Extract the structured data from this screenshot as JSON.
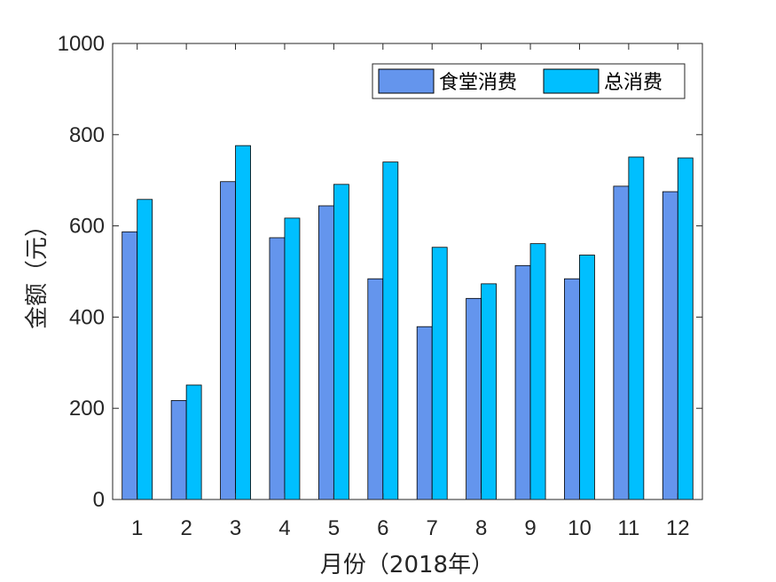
{
  "chart_data": {
    "type": "bar",
    "categories": [
      "1",
      "2",
      "3",
      "4",
      "5",
      "6",
      "7",
      "8",
      "9",
      "10",
      "11",
      "12"
    ],
    "series": [
      {
        "name": "食堂消费",
        "color": "#6495ED",
        "values": [
          587,
          217,
          697,
          574,
          644,
          484,
          379,
          441,
          513,
          484,
          687,
          675
        ]
      },
      {
        "name": "总消费",
        "color": "#00BFFF",
        "values": [
          658,
          251,
          776,
          617,
          691,
          740,
          553,
          473,
          561,
          536,
          751,
          749
        ]
      }
    ],
    "xlabel": "月份（2018年）",
    "ylabel": "金额（元）",
    "ylim": [
      0,
      1000
    ],
    "yticks": [
      "0",
      "200",
      "400",
      "600",
      "800",
      "1000"
    ],
    "grid": false,
    "legend_position": "top-right"
  }
}
